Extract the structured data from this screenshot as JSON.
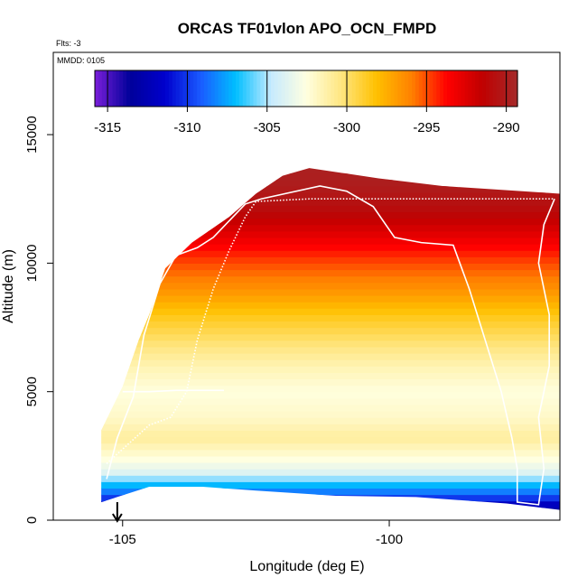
{
  "chart_data": {
    "type": "heatmap",
    "title": "ORCAS TF01vlon APO_OCN_FMPD",
    "flights_note": "Flts: -3",
    "date_note": "MMDD: 0105",
    "xlabel": "Longitude (deg E)",
    "ylabel": "Altitude (m)",
    "xlim": [
      -106.3,
      -96.8
    ],
    "ylim": [
      0,
      18200
    ],
    "x_ticks": [
      -105,
      -100
    ],
    "x_tick_labels": [
      "-105",
      "-100"
    ],
    "y_ticks": [
      0,
      5000,
      10000,
      15000
    ],
    "y_tick_labels": [
      "0",
      "5000",
      "10000",
      "15000"
    ],
    "colorbar": {
      "min": -315.8,
      "max": -289.3,
      "ticks": [
        -315,
        -310,
        -305,
        -300,
        -295,
        -290
      ],
      "tick_labels": [
        "-315",
        "-310",
        "-305",
        "-300",
        "-295",
        "-290"
      ],
      "colors": [
        "#7a1fd9",
        "#00009a",
        "#0000cd",
        "#1a5aff",
        "#00bfff",
        "#c6eaff",
        "#ffffe0",
        "#ffe680",
        "#ffc000",
        "#ff8000",
        "#ff0000",
        "#c00000",
        "#a52a2a"
      ]
    },
    "altitude_profile": [
      {
        "alt": 500,
        "value": -313
      },
      {
        "alt": 1000,
        "value": -309
      },
      {
        "alt": 1400,
        "value": -307
      },
      {
        "alt": 1800,
        "value": -304
      },
      {
        "alt": 2400,
        "value": -302.5
      },
      {
        "alt": 3200,
        "value": -301
      },
      {
        "alt": 4000,
        "value": -302
      },
      {
        "alt": 5000,
        "value": -302.5
      },
      {
        "alt": 6000,
        "value": -301.5
      },
      {
        "alt": 7000,
        "value": -300
      },
      {
        "alt": 8000,
        "value": -298.5
      },
      {
        "alt": 9000,
        "value": -296.5
      },
      {
        "alt": 10000,
        "value": -295
      },
      {
        "alt": 11000,
        "value": -293
      },
      {
        "alt": 12000,
        "value": -291
      },
      {
        "alt": 13000,
        "value": -290
      },
      {
        "alt": 13700,
        "value": -289.8
      }
    ],
    "data_envelope": [
      {
        "lon": -105.4,
        "alt": 700
      },
      {
        "lon": -105.4,
        "alt": 3500
      },
      {
        "lon": -105.0,
        "alt": 5200
      },
      {
        "lon": -104.7,
        "alt": 7000
      },
      {
        "lon": -104.5,
        "alt": 8000
      },
      {
        "lon": -104.2,
        "alt": 9800
      },
      {
        "lon": -103.7,
        "alt": 10800
      },
      {
        "lon": -103.0,
        "alt": 11800
      },
      {
        "lon": -102.5,
        "alt": 12700
      },
      {
        "lon": -102.0,
        "alt": 13400
      },
      {
        "lon": -101.5,
        "alt": 13700
      },
      {
        "lon": -100.2,
        "alt": 13300
      },
      {
        "lon": -99.0,
        "alt": 13000
      },
      {
        "lon": -97.5,
        "alt": 12800
      },
      {
        "lon": -96.8,
        "alt": 12700
      },
      {
        "lon": -96.8,
        "alt": 400
      },
      {
        "lon": -97.8,
        "alt": 650
      },
      {
        "lon": -99.5,
        "alt": 900
      },
      {
        "lon": -101.0,
        "alt": 950
      },
      {
        "lon": -102.5,
        "alt": 1150
      },
      {
        "lon": -103.5,
        "alt": 1300
      },
      {
        "lon": -104.5,
        "alt": 1300
      },
      {
        "lon": -105.4,
        "alt": 700
      }
    ],
    "flight_track_solid": [
      {
        "lon": -105.3,
        "alt": 1600
      },
      {
        "lon": -105.1,
        "alt": 3200
      },
      {
        "lon": -104.8,
        "alt": 4800
      },
      {
        "lon": -104.6,
        "alt": 7200
      },
      {
        "lon": -104.3,
        "alt": 9200
      },
      {
        "lon": -104.0,
        "alt": 10300
      },
      {
        "lon": -103.6,
        "alt": 10600
      },
      {
        "lon": -103.3,
        "alt": 11000
      },
      {
        "lon": -102.7,
        "alt": 12300
      },
      {
        "lon": -102.4,
        "alt": 12500
      },
      {
        "lon": -101.3,
        "alt": 13000
      },
      {
        "lon": -100.8,
        "alt": 12800
      },
      {
        "lon": -100.3,
        "alt": 12200
      },
      {
        "lon": -99.9,
        "alt": 11000
      },
      {
        "lon": -99.4,
        "alt": 10800
      },
      {
        "lon": -98.8,
        "alt": 10700
      },
      {
        "lon": -98.5,
        "alt": 9000
      },
      {
        "lon": -98.2,
        "alt": 7000
      },
      {
        "lon": -97.9,
        "alt": 5000
      },
      {
        "lon": -97.7,
        "alt": 3200
      },
      {
        "lon": -97.6,
        "alt": 2000
      },
      {
        "lon": -97.6,
        "alt": 700
      },
      {
        "lon": -97.2,
        "alt": 600
      },
      {
        "lon": -97.1,
        "alt": 2000
      },
      {
        "lon": -97.2,
        "alt": 4000
      },
      {
        "lon": -97.0,
        "alt": 6000
      },
      {
        "lon": -97.0,
        "alt": 8000
      },
      {
        "lon": -97.2,
        "alt": 10000
      },
      {
        "lon": -97.1,
        "alt": 11500
      },
      {
        "lon": -96.9,
        "alt": 12500
      }
    ],
    "flight_track_dotted": [
      {
        "lon": -105.3,
        "alt": 2200
      },
      {
        "lon": -104.5,
        "alt": 3700
      },
      {
        "lon": -104.1,
        "alt": 4000
      },
      {
        "lon": -103.8,
        "alt": 5000
      },
      {
        "lon": -103.6,
        "alt": 7000
      },
      {
        "lon": -103.3,
        "alt": 9000
      },
      {
        "lon": -103.0,
        "alt": 10500
      },
      {
        "lon": -102.7,
        "alt": 11800
      },
      {
        "lon": -102.5,
        "alt": 12400
      },
      {
        "lon": -101.5,
        "alt": 12500
      },
      {
        "lon": -99.0,
        "alt": 12500
      },
      {
        "lon": -97.0,
        "alt": 12500
      },
      {
        "lon": -96.9,
        "alt": 12500
      }
    ],
    "flight_track_lower": [
      {
        "lon": -105.0,
        "alt": 5000
      },
      {
        "lon": -104.5,
        "alt": 5000
      },
      {
        "lon": -104.0,
        "alt": 5050
      },
      {
        "lon": -103.1,
        "alt": 5050
      }
    ],
    "marker_arrow_lon": -105.1
  }
}
